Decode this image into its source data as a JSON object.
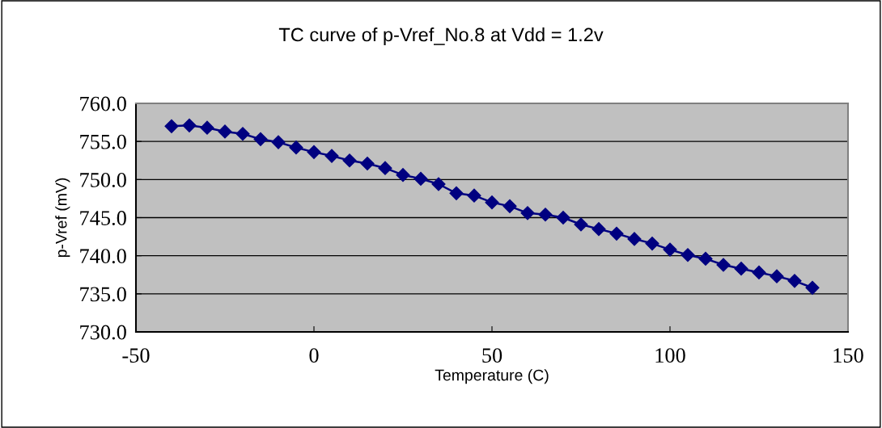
{
  "chart_data": {
    "type": "line",
    "title": "TC curve of p-Vref_No.8 at Vdd = 1.2v",
    "xlabel": "Temperature (C)",
    "ylabel": "p-Vref (mV)",
    "x": [
      -40,
      -35,
      -30,
      -25,
      -20,
      -15,
      -10,
      -5,
      0,
      5,
      10,
      15,
      20,
      25,
      30,
      35,
      40,
      45,
      50,
      55,
      60,
      65,
      70,
      75,
      80,
      85,
      90,
      95,
      100,
      105,
      110,
      115,
      120,
      125,
      130,
      135,
      140
    ],
    "series": [
      {
        "color": "#000080",
        "values": [
          757.0,
          757.1,
          756.8,
          756.3,
          756.0,
          755.3,
          754.9,
          754.2,
          753.6,
          753.1,
          752.5,
          752.1,
          751.5,
          750.6,
          750.1,
          749.4,
          748.2,
          747.9,
          747.0,
          746.5,
          745.6,
          745.4,
          745.0,
          744.1,
          743.5,
          742.9,
          742.2,
          741.6,
          740.8,
          740.1,
          739.6,
          738.8,
          738.3,
          737.8,
          737.3,
          736.7,
          735.8
        ]
      }
    ],
    "xlim": [
      -50,
      150
    ],
    "xticks": [
      -50,
      0,
      50,
      100,
      150
    ],
    "ylim": [
      730,
      760
    ],
    "yticks": [
      {
        "value": 730,
        "label": "730.0"
      },
      {
        "value": 735,
        "label": "735.0"
      },
      {
        "value": 740,
        "label": "740.0"
      },
      {
        "value": 745,
        "label": "745.0"
      },
      {
        "value": 750,
        "label": "750.0"
      },
      {
        "value": 755,
        "label": "755.0"
      },
      {
        "value": 760,
        "label": "760.0"
      }
    ],
    "grid": "y",
    "marker": "diamond",
    "line_style": "solid"
  }
}
